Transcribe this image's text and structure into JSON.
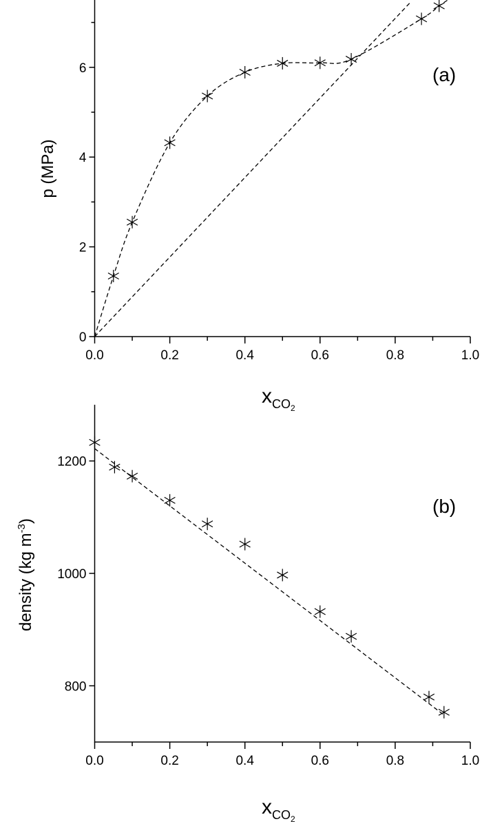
{
  "chart_data": [
    {
      "type": "scatter",
      "panel_label": "(a)",
      "xlabel": "x",
      "xlabel_sub": "CO",
      "xlabel_subsub": "2",
      "ylabel": "p (MPa)",
      "xlim": [
        0,
        1.0
      ],
      "ylim": [
        0,
        7.5
      ],
      "xticks": [
        "0.0",
        "0.2",
        "0.4",
        "0.6",
        "0.8",
        "1.0"
      ],
      "yticks": [
        "0",
        "2",
        "4",
        "6"
      ],
      "marker": "asterisk",
      "grid": false,
      "points": {
        "x": [
          0.05,
          0.1,
          0.2,
          0.3,
          0.4,
          0.5,
          0.6,
          0.683,
          0.87,
          0.917
        ],
        "y": [
          1.35,
          2.55,
          4.32,
          5.36,
          5.89,
          6.09,
          6.1,
          6.18,
          7.08,
          7.37
        ]
      },
      "dashed_curve": {
        "x": [
          0,
          0.05,
          0.1,
          0.2,
          0.3,
          0.4,
          0.5,
          0.6,
          0.683,
          0.87,
          0.917,
          0.94
        ],
        "y": [
          0,
          1.35,
          2.55,
          4.32,
          5.36,
          5.89,
          6.09,
          6.1,
          6.18,
          7.08,
          7.37,
          7.5
        ]
      },
      "dashed_line": {
        "x": [
          0,
          0.843
        ],
        "y": [
          0,
          7.47
        ]
      }
    },
    {
      "type": "scatter",
      "panel_label": "(b)",
      "xlabel": "x",
      "xlabel_sub": "CO",
      "xlabel_subsub": "2",
      "ylabel": "density (kg m",
      "ylabel_sup": "-3",
      "ylabel_end": ")",
      "xlim": [
        0,
        1.0
      ],
      "ylim": [
        700,
        1300
      ],
      "xticks": [
        "0.0",
        "0.2",
        "0.4",
        "0.6",
        "0.8",
        "1.0"
      ],
      "yticks": [
        "800",
        "1000",
        "1200"
      ],
      "marker": "asterisk",
      "grid": false,
      "points": {
        "x": [
          0.0,
          0.053,
          0.1,
          0.2,
          0.3,
          0.4,
          0.5,
          0.6,
          0.683,
          0.89,
          0.93
        ],
        "y": [
          1233,
          1189,
          1173,
          1130,
          1088,
          1052,
          997,
          932,
          888,
          780,
          753
        ]
      },
      "dashed_line": {
        "x": [
          0,
          0.93
        ],
        "y": [
          1222,
          748
        ]
      }
    }
  ]
}
